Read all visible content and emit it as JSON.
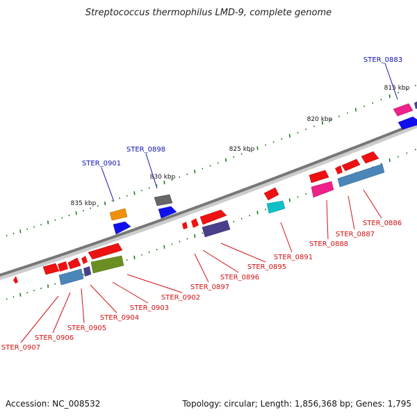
{
  "title": "Streptococcus thermophilus LMD-9, complete genome",
  "footer": {
    "accession": "Accession: NC_008532",
    "summary": "Topology: circular; Length: 1,856,368 bp; Genes: 1,795"
  },
  "colors": {
    "backbone": "#777777",
    "tick": "#1a7a1a",
    "label_top": "#1010b0",
    "label_bottom": "#d01010",
    "gene_red": "#ee1111",
    "gene_blue": "#1010ee",
    "gene_pink": "#ee2288",
    "gene_steel": "#4a86b8",
    "gene_slate": "#4a3f8a",
    "gene_olive": "#6b8e23",
    "gene_orange": "#f0900a",
    "gene_gray": "#666666",
    "gene_cyan": "#10c0c8"
  },
  "kbp_labels": [
    "815 kbp",
    "820 kbp",
    "825 kbp",
    "830 kbp",
    "835 kbp"
  ],
  "top_labels": [
    "STER_0883",
    "STER_0898",
    "STER_0901"
  ],
  "bottom_labels": [
    "STER_0886",
    "STER_0887",
    "STER_0888",
    "STER_0891",
    "STER_0895",
    "STER_0896",
    "STER_0897",
    "STER_0902",
    "STER_0903",
    "STER_0904",
    "STER_0905",
    "STER_0906",
    "STER_0907"
  ]
}
